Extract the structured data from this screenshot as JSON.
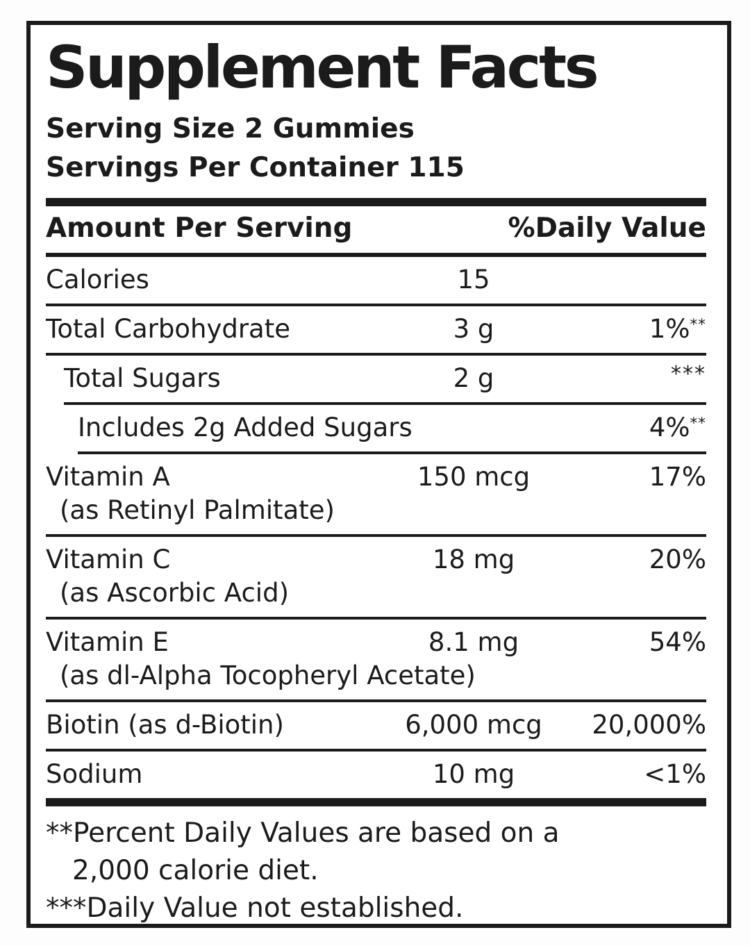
{
  "colors": {
    "ink": "#1b1b1b",
    "paper": "#ffffff",
    "page_background": "#fdfdfd"
  },
  "panel": {
    "title": "Supplement Facts",
    "serving_size": "Serving Size 2 Gummies",
    "servings_per_container": "Servings Per Container 115",
    "header": {
      "amount_label": "Amount Per Serving",
      "daily_value_label": "%Daily Value"
    },
    "rows": [
      {
        "label": "Calories",
        "amount": "15",
        "dv": "",
        "indent": 0
      },
      {
        "label": "Total Carbohydrate",
        "amount": "3 g",
        "dv": "1%**",
        "indent": 0
      },
      {
        "label": "Total Sugars",
        "amount": "2 g",
        "dv": "***",
        "indent": 1
      },
      {
        "label": "Includes 2g Added Sugars",
        "amount": "",
        "dv": "4%**",
        "indent": 2
      },
      {
        "label": "Vitamin A",
        "sub": "(as Retinyl Palmitate)",
        "amount": "150 mcg",
        "dv": "17%",
        "indent": 0
      },
      {
        "label": "Vitamin C",
        "sub": "(as Ascorbic Acid)",
        "amount": "18 mg",
        "dv": "20%",
        "indent": 0
      },
      {
        "label": "Vitamin E",
        "sub": "(as dl-Alpha Tocopheryl Acetate)",
        "amount": "8.1 mg",
        "dv": "54%",
        "indent": 0
      },
      {
        "label": "Biotin (as d-Biotin)",
        "amount": "6,000 mcg",
        "dv": "20,000%",
        "indent": 0
      },
      {
        "label": "Sodium",
        "amount": "10 mg",
        "dv": "<1%",
        "indent": 0
      }
    ],
    "footnote_lines": [
      {
        "text": "**Percent Daily Values are based on a",
        "indented": false
      },
      {
        "text": "2,000 calorie diet.",
        "indented": true
      },
      {
        "text": "***Daily Value not established.",
        "indented": false
      }
    ]
  }
}
